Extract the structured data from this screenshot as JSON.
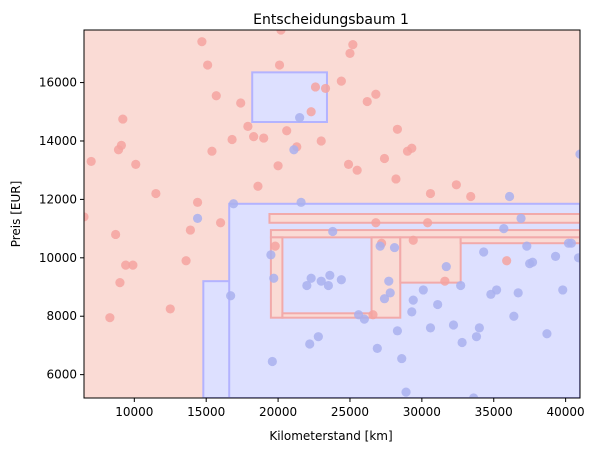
{
  "chart_data": {
    "type": "scatter",
    "title": "Entscheidungsbaum 1",
    "xlabel": "Kilometerstand [km]",
    "ylabel": "Preis [EUR]",
    "xlim": [
      6500,
      41000
    ],
    "ylim": [
      5200,
      17800
    ],
    "xticks": [
      10000,
      15000,
      20000,
      25000,
      30000,
      35000,
      40000
    ],
    "yticks": [
      6000,
      8000,
      10000,
      12000,
      14000,
      16000
    ],
    "xtick_labels": [
      "10000",
      "15000",
      "20000",
      "25000",
      "30000",
      "35000",
      "40000"
    ],
    "ytick_labels": [
      "6000",
      "8000",
      "10000",
      "12000",
      "14000",
      "16000"
    ],
    "grid": false,
    "background_class": "red",
    "colors": {
      "red_region": "#fadbd5",
      "blue_region": "#dde0ff",
      "red_point": "#f4a3a0",
      "blue_point": "#a9b0ee",
      "boundary_red": "#f2aaaa",
      "boundary_blue": "#b3b3ff"
    },
    "decision_regions": [
      {
        "class": "blue",
        "x": [
          18200,
          23400
        ],
        "y": [
          14650,
          16350
        ]
      },
      {
        "class": "blue",
        "x": [
          14800,
          41000
        ],
        "y": [
          5200,
          9200
        ]
      },
      {
        "class": "blue",
        "x": [
          16600,
          41000
        ],
        "y": [
          5200,
          11850
        ]
      },
      {
        "class": "red",
        "x": [
          19400,
          41000
        ],
        "y": [
          11200,
          11500
        ]
      },
      {
        "class": "red",
        "x": [
          19500,
          41000
        ],
        "y": [
          10700,
          10950
        ]
      },
      {
        "class": "red",
        "x": [
          19500,
          20300
        ],
        "y": [
          7950,
          10700
        ]
      },
      {
        "class": "red",
        "x": [
          20300,
          26500
        ],
        "y": [
          7950,
          8100
        ]
      },
      {
        "class": "red",
        "x": [
          26500,
          28500
        ],
        "y": [
          7950,
          10700
        ]
      },
      {
        "class": "red",
        "x": [
          28500,
          32700
        ],
        "y": [
          9150,
          10700
        ]
      },
      {
        "class": "red",
        "x": [
          32700,
          41000
        ],
        "y": [
          10500,
          10700
        ]
      }
    ],
    "series": [
      {
        "name": "",
        "class": "red",
        "points": [
          [
            6500,
            11400
          ],
          [
            7000,
            13300
          ],
          [
            8300,
            7950
          ],
          [
            8700,
            10800
          ],
          [
            8900,
            13700
          ],
          [
            9100,
            13850
          ],
          [
            9200,
            14750
          ],
          [
            9000,
            9150
          ],
          [
            9400,
            9750
          ],
          [
            9900,
            9750
          ],
          [
            10100,
            13200
          ],
          [
            11500,
            12200
          ],
          [
            12500,
            8250
          ],
          [
            13600,
            9900
          ],
          [
            13900,
            10950
          ],
          [
            14400,
            11900
          ],
          [
            14700,
            17400
          ],
          [
            15100,
            16600
          ],
          [
            15400,
            13650
          ],
          [
            15700,
            15550
          ],
          [
            16000,
            11200
          ],
          [
            16800,
            14050
          ],
          [
            17400,
            15300
          ],
          [
            17900,
            14500
          ],
          [
            18300,
            14150
          ],
          [
            18600,
            12450
          ],
          [
            19000,
            14100
          ],
          [
            19800,
            10400
          ],
          [
            20000,
            13150
          ],
          [
            20100,
            16600
          ],
          [
            20200,
            17800
          ],
          [
            20600,
            14350
          ],
          [
            21300,
            13800
          ],
          [
            22300,
            15000
          ],
          [
            22600,
            15850
          ],
          [
            23000,
            14000
          ],
          [
            23300,
            15800
          ],
          [
            24400,
            16050
          ],
          [
            24900,
            13200
          ],
          [
            25000,
            17000
          ],
          [
            25200,
            17300
          ],
          [
            25500,
            13000
          ],
          [
            26200,
            15350
          ],
          [
            26600,
            8050
          ],
          [
            26800,
            15600
          ],
          [
            26800,
            11200
          ],
          [
            27200,
            10500
          ],
          [
            27400,
            13400
          ],
          [
            28200,
            12700
          ],
          [
            28300,
            14400
          ],
          [
            29000,
            13650
          ],
          [
            29300,
            13750
          ],
          [
            29400,
            10600
          ],
          [
            30400,
            11200
          ],
          [
            30600,
            12200
          ],
          [
            31600,
            9200
          ],
          [
            32400,
            12500
          ],
          [
            33400,
            12100
          ],
          [
            35900,
            9900
          ]
        ]
      },
      {
        "name": "",
        "class": "blue",
        "points": [
          [
            14400,
            11350
          ],
          [
            16700,
            8700
          ],
          [
            16900,
            11850
          ],
          [
            19500,
            10100
          ],
          [
            19600,
            6450
          ],
          [
            19700,
            9300
          ],
          [
            21100,
            13700
          ],
          [
            21500,
            14800
          ],
          [
            21600,
            11900
          ],
          [
            22000,
            9050
          ],
          [
            22200,
            7050
          ],
          [
            22300,
            9300
          ],
          [
            22800,
            7300
          ],
          [
            23000,
            9200
          ],
          [
            23500,
            9050
          ],
          [
            23600,
            9400
          ],
          [
            23800,
            10900
          ],
          [
            24400,
            9250
          ],
          [
            25600,
            8050
          ],
          [
            26000,
            7900
          ],
          [
            26900,
            6900
          ],
          [
            27100,
            10400
          ],
          [
            27400,
            8600
          ],
          [
            27700,
            9200
          ],
          [
            27800,
            8800
          ],
          [
            28100,
            10350
          ],
          [
            28300,
            7500
          ],
          [
            28600,
            6550
          ],
          [
            28900,
            5400
          ],
          [
            29300,
            8150
          ],
          [
            29400,
            8550
          ],
          [
            30100,
            8900
          ],
          [
            30600,
            7600
          ],
          [
            31100,
            8400
          ],
          [
            31700,
            9700
          ],
          [
            32200,
            7700
          ],
          [
            32700,
            9050
          ],
          [
            32800,
            7100
          ],
          [
            33600,
            5200
          ],
          [
            33800,
            7300
          ],
          [
            34000,
            7600
          ],
          [
            34300,
            10200
          ],
          [
            34800,
            8750
          ],
          [
            35200,
            8900
          ],
          [
            35700,
            11000
          ],
          [
            36100,
            12100
          ],
          [
            36400,
            8000
          ],
          [
            36700,
            8800
          ],
          [
            36900,
            11350
          ],
          [
            37300,
            10400
          ],
          [
            37500,
            9800
          ],
          [
            37700,
            9850
          ],
          [
            38700,
            7400
          ],
          [
            39300,
            10050
          ],
          [
            39800,
            8900
          ],
          [
            40200,
            10500
          ],
          [
            40400,
            10500
          ],
          [
            40900,
            10000
          ],
          [
            41000,
            13550
          ]
        ]
      }
    ]
  }
}
